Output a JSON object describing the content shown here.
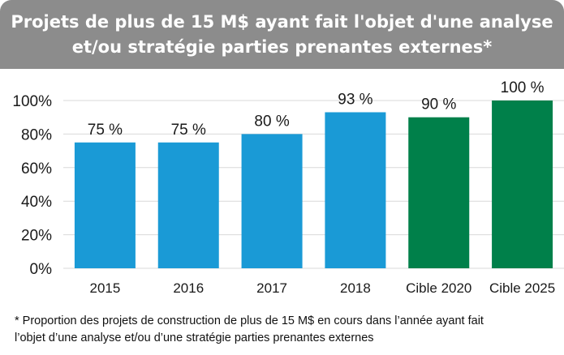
{
  "title": {
    "line1": "Projets de plus de 15 M$ ayant fait l'objet d'une analyse",
    "line2": "et/ou stratégie parties prenantes externes*"
  },
  "footnote": {
    "line1": "* Proportion des projets de construction de plus de 15 M$ en cours dans l’année ayant fait",
    "line2": "l’objet d’une analyse et/ou d’une stratégie parties prenantes externes"
  },
  "chart_data": {
    "type": "bar",
    "categories": [
      "2015",
      "2016",
      "2017",
      "2018",
      "Cible 2020",
      "Cible 2025"
    ],
    "values": [
      75,
      75,
      80,
      93,
      90,
      100
    ],
    "value_labels": [
      "75 %",
      "75 %",
      "80 %",
      "93 %",
      "90 %",
      "100 %"
    ],
    "bar_colors": [
      "#1a9ad6",
      "#1a9ad6",
      "#1a9ad6",
      "#1a9ad6",
      "#00804a",
      "#00804a"
    ],
    "ylim": [
      0,
      100
    ],
    "yticks": [
      0,
      20,
      40,
      60,
      80,
      100
    ],
    "ytick_labels": [
      "0%",
      "20%",
      "40%",
      "60%",
      "80%",
      "100%"
    ],
    "grid": true,
    "xlabel": "",
    "ylabel": ""
  }
}
